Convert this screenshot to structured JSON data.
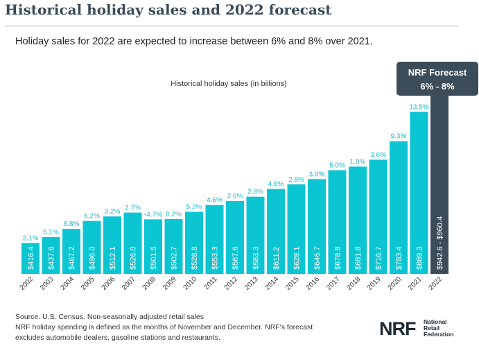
{
  "header": {
    "title": "Historical holiday sales and 2022 forecast",
    "subtitle": "Holiday sales for 2022 are expected to increase between 6% and 8% over 2021."
  },
  "chart_data": {
    "type": "bar",
    "title": "Historical holiday sales (in billions)",
    "categories": [
      "2002",
      "2003",
      "2004",
      "2005",
      "2006",
      "2007",
      "2008",
      "2009",
      "2010",
      "2011",
      "2012",
      "2013",
      "2014",
      "2015",
      "2016",
      "2017",
      "2018",
      "2019",
      "2020",
      "2021",
      "2022"
    ],
    "values": [
      416.4,
      437.6,
      467.2,
      496.0,
      512.1,
      526.0,
      501.5,
      502.7,
      528.8,
      553.3,
      567.6,
      583.3,
      611.2,
      628.1,
      646.7,
      678.8,
      691.8,
      716.7,
      783.4,
      889.3,
      960.4
    ],
    "value_labels": [
      "$416.4",
      "$437.6",
      "$467.2",
      "$496.0",
      "$512.1",
      "$526.0",
      "$501.5",
      "$502.7",
      "$528.8",
      "$553.3",
      "$567.6",
      "$583.3",
      "$611.2",
      "$628.1",
      "$646.7",
      "$678.8",
      "$691.8",
      "$716.7",
      "$783.4",
      "$889.3",
      "$942.6 - $960.4"
    ],
    "growth_labels": [
      "2.1%",
      "5.1%",
      "6.8%",
      "6.2%",
      "3.2%",
      "2.7%",
      "-4.7%",
      "0.2%",
      "5.2%",
      "4.6%",
      "2.6%",
      "2.8%",
      "4.8%",
      "2.8%",
      "3.0%",
      "5.0%",
      "1.9%",
      "3.6%",
      "9.3%",
      "13.5%",
      ""
    ],
    "forecast_range": [
      942.6,
      960.4
    ],
    "forecast_index": 20,
    "colors": {
      "historical": "#0bc5d3",
      "forecast": "#3c4c59",
      "label": "#20b7c4"
    },
    "ylim": [
      0,
      1050
    ],
    "grid": false,
    "callout": {
      "line1": "NRF Forecast",
      "line2": "6% - 8%"
    }
  },
  "footer": {
    "line1": "Source. U.S. Census. Non-seasonally adjusted retail sales",
    "line2": "NRF holiday spending is defined as the months of November and December. NRF's forecast",
    "line3": "excludes automobile dealers, gasoline stations and restaurants."
  },
  "logo": {
    "mark": "NRF",
    "line1": "National",
    "line2": "Retail",
    "line3": "Federation"
  }
}
